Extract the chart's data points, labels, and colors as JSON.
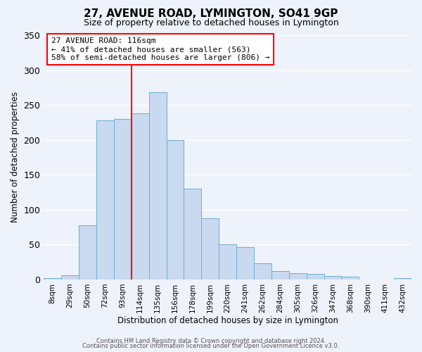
{
  "title": "27, AVENUE ROAD, LYMINGTON, SO41 9GP",
  "subtitle": "Size of property relative to detached houses in Lymington",
  "xlabel": "Distribution of detached houses by size in Lymington",
  "ylabel": "Number of detached properties",
  "bar_labels": [
    "8sqm",
    "29sqm",
    "50sqm",
    "72sqm",
    "93sqm",
    "114sqm",
    "135sqm",
    "156sqm",
    "178sqm",
    "199sqm",
    "220sqm",
    "241sqm",
    "262sqm",
    "284sqm",
    "305sqm",
    "326sqm",
    "347sqm",
    "368sqm",
    "390sqm",
    "411sqm",
    "432sqm"
  ],
  "bar_values": [
    2,
    6,
    78,
    228,
    230,
    238,
    268,
    200,
    130,
    88,
    50,
    46,
    23,
    12,
    9,
    8,
    5,
    4,
    0,
    0,
    2
  ],
  "bar_color": "#c9d9ef",
  "bar_edge_color": "#6baed6",
  "vline_index": 5,
  "vline_color": "red",
  "annotation_title": "27 AVENUE ROAD: 116sqm",
  "annotation_line1": "← 41% of detached houses are smaller (563)",
  "annotation_line2": "58% of semi-detached houses are larger (806) →",
  "annotation_box_color": "red",
  "ylim": [
    0,
    350
  ],
  "yticks": [
    0,
    50,
    100,
    150,
    200,
    250,
    300,
    350
  ],
  "footer1": "Contains HM Land Registry data © Crown copyright and database right 2024.",
  "footer2": "Contains public sector information licensed under the Open Government Licence v3.0.",
  "bg_color": "#eef2fa",
  "grid_color": "white"
}
